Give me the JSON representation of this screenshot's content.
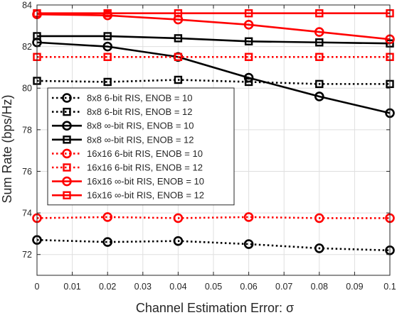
{
  "chart_data": {
    "type": "line",
    "title": "",
    "xlabel": "Channel Estimation Error: σ",
    "ylabel": "Sum Rate (bps/Hz)",
    "xlim": [
      0,
      0.1
    ],
    "ylim": [
      71,
      84
    ],
    "xticks": [
      "0",
      "0.01",
      "0.02",
      "0.03",
      "0.04",
      "0.05",
      "0.06",
      "0.07",
      "0.08",
      "0.09",
      "0.1"
    ],
    "yticks": [
      "72",
      "74",
      "76",
      "78",
      "80",
      "82",
      "84"
    ],
    "grid": true,
    "legend_placement": "center-left",
    "x": [
      0,
      0.02,
      0.04,
      0.06,
      0.08,
      0.1
    ],
    "series": [
      {
        "name": "8x8 6-bit RIS, ENOB = 10",
        "color": "#000000",
        "marker": "circle",
        "line": "dotted",
        "values": [
          72.7,
          72.6,
          72.65,
          72.5,
          72.3,
          72.2
        ]
      },
      {
        "name": "8x8 6-bit RIS, ENOB = 12",
        "color": "#000000",
        "marker": "square",
        "line": "dotted",
        "values": [
          80.35,
          80.3,
          80.4,
          80.3,
          80.2,
          80.2
        ]
      },
      {
        "name": "8x8 ∞-bit RIS, ENOB = 10",
        "color": "#000000",
        "marker": "circle",
        "line": "solid",
        "values": [
          82.2,
          82.0,
          81.5,
          80.5,
          79.6,
          78.8
        ]
      },
      {
        "name": "8x8 ∞-bit RIS, ENOB = 12",
        "color": "#000000",
        "marker": "square",
        "line": "solid",
        "values": [
          82.5,
          82.5,
          82.4,
          82.25,
          82.2,
          82.15
        ]
      },
      {
        "name": "16x16 6-bit RIS, ENOB = 10",
        "color": "#ff0000",
        "marker": "circle",
        "line": "dotted",
        "values": [
          73.75,
          73.8,
          73.75,
          73.8,
          73.75,
          73.75
        ]
      },
      {
        "name": "16x16 6-bit RIS, ENOB = 12",
        "color": "#ff0000",
        "marker": "square",
        "line": "dotted",
        "values": [
          81.5,
          81.5,
          81.5,
          81.5,
          81.5,
          81.5
        ]
      },
      {
        "name": "16x16 ∞-bit RIS, ENOB = 10",
        "color": "#ff0000",
        "marker": "circle",
        "line": "solid",
        "values": [
          83.55,
          83.5,
          83.3,
          83.05,
          82.7,
          82.35
        ]
      },
      {
        "name": "16x16 ∞-bit RIS, ENOB = 12",
        "color": "#ff0000",
        "marker": "square",
        "line": "solid",
        "values": [
          83.6,
          83.6,
          83.6,
          83.6,
          83.6,
          83.6
        ]
      }
    ]
  }
}
